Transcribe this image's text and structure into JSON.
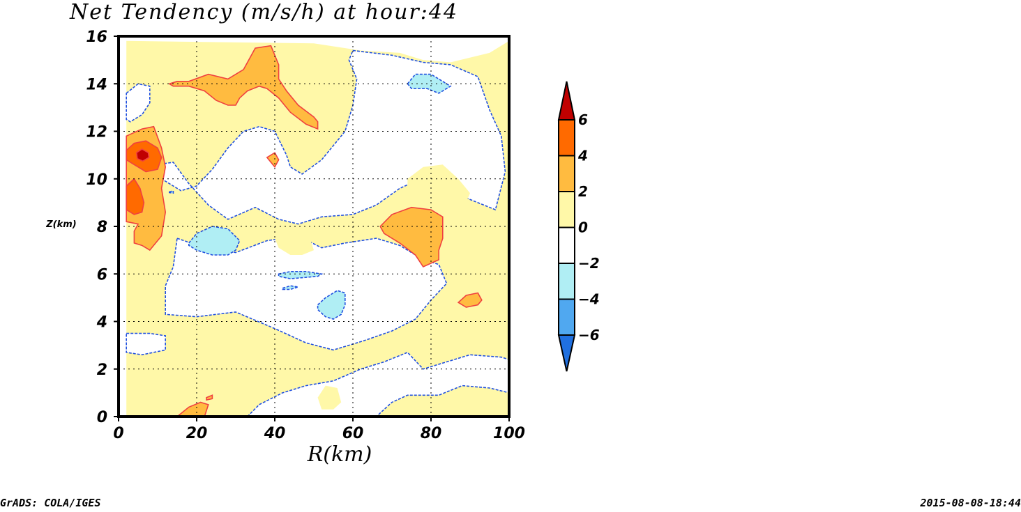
{
  "chart_data": {
    "type": "heatmap",
    "title": "Net Tendency (m/s/h) at hour:44",
    "xlabel": "R(km)",
    "ylabel": "Z(km)",
    "xlim": [
      0,
      100
    ],
    "ylim": [
      0,
      16
    ],
    "x_ticks": [
      "0",
      "20",
      "40",
      "60",
      "80",
      "100"
    ],
    "y_ticks": [
      "0",
      "2",
      "4",
      "6",
      "8",
      "10",
      "12",
      "14",
      "16"
    ],
    "grid": true,
    "levels": [
      -6,
      -4,
      -2,
      0,
      2,
      4,
      6
    ],
    "colorbar": {
      "labels": [
        "6",
        "4",
        "2",
        "0",
        "-2",
        "-4",
        "-6"
      ],
      "colors": [
        "#c00000",
        "#ff6a00",
        "#ffbb40",
        "#fff8a8",
        "#ffffff",
        "#b0eef4",
        "#50a8f0",
        "#2070e0"
      ],
      "placement": "right"
    },
    "features": [
      {
        "value_range": "0 to 2",
        "color": "#fff8a8",
        "polygon": [
          [
            2,
            15.8
          ],
          [
            50,
            15.7
          ],
          [
            62,
            15.4
          ],
          [
            72,
            15.3
          ],
          [
            78,
            15.0
          ],
          [
            85,
            14.9
          ],
          [
            95,
            15.3
          ],
          [
            100,
            15.8
          ],
          [
            100,
            0
          ],
          [
            2,
            0
          ]
        ]
      },
      {
        "value_range": "-2 to 0",
        "color": "#ffffff",
        "polygon": [
          [
            60,
            15.4
          ],
          [
            70,
            15.2
          ],
          [
            78,
            14.9
          ],
          [
            85,
            14.8
          ],
          [
            92,
            14.3
          ],
          [
            95,
            12.9
          ],
          [
            98,
            11.8
          ],
          [
            99,
            10.3
          ],
          [
            96.5,
            8.7
          ],
          [
            89,
            9.2
          ],
          [
            80,
            10.2
          ],
          [
            72,
            9.6
          ],
          [
            66,
            8.9
          ],
          [
            60,
            8.5
          ],
          [
            52,
            8.4
          ],
          [
            46,
            8.1
          ],
          [
            41,
            8.3
          ],
          [
            35,
            8.8
          ],
          [
            28,
            8.3
          ],
          [
            23,
            8.9
          ],
          [
            18,
            9.8
          ],
          [
            14,
            10.7
          ],
          [
            10,
            10.6
          ],
          [
            10,
            10.1
          ],
          [
            16,
            9.5
          ],
          [
            20,
            9.7
          ],
          [
            24,
            10.4
          ],
          [
            28,
            11.3
          ],
          [
            32,
            12.0
          ],
          [
            36,
            12.2
          ],
          [
            40,
            12.0
          ],
          [
            43,
            11.0
          ],
          [
            44,
            10.5
          ],
          [
            47,
            10.2
          ],
          [
            52,
            10.8
          ],
          [
            58,
            12.0
          ],
          [
            60,
            13.1
          ],
          [
            61,
            14.2
          ],
          [
            59,
            15.0
          ]
        ]
      },
      {
        "value_range": "-2 to 0",
        "color": "#ffffff",
        "polygon": [
          [
            15,
            7.5
          ],
          [
            22,
            7.1
          ],
          [
            30,
            6.9
          ],
          [
            38,
            7.4
          ],
          [
            46,
            7.6
          ],
          [
            52,
            7.1
          ],
          [
            58,
            7.3
          ],
          [
            66,
            7.5
          ],
          [
            72,
            7.2
          ],
          [
            78,
            6.6
          ],
          [
            82,
            6.4
          ],
          [
            84,
            5.6
          ],
          [
            80,
            4.9
          ],
          [
            76,
            4.1
          ],
          [
            70,
            3.6
          ],
          [
            63,
            3.2
          ],
          [
            55,
            2.8
          ],
          [
            48,
            3.1
          ],
          [
            40,
            3.7
          ],
          [
            30,
            4.4
          ],
          [
            20,
            4.2
          ],
          [
            12,
            4.3
          ],
          [
            12,
            5.5
          ],
          [
            14,
            6.3
          ]
        ]
      },
      {
        "value_range": "-2 to 0",
        "color": "#ffffff",
        "polygon": [
          [
            33,
            0
          ],
          [
            36,
            0.5
          ],
          [
            42,
            1.0
          ],
          [
            48,
            1.3
          ],
          [
            55,
            1.5
          ],
          [
            62,
            2.0
          ],
          [
            68,
            2.3
          ],
          [
            74,
            2.7
          ],
          [
            78,
            2.0
          ],
          [
            84,
            2.3
          ],
          [
            90,
            2.6
          ],
          [
            98,
            2.5
          ],
          [
            100,
            2.4
          ],
          [
            100,
            1.0
          ],
          [
            95,
            1.2
          ],
          [
            88,
            1.3
          ],
          [
            82,
            0.9
          ],
          [
            74,
            0.9
          ],
          [
            70,
            0.6
          ],
          [
            66,
            0
          ],
          [
            52,
            0
          ],
          [
            44,
            0
          ]
        ]
      },
      {
        "value_range": "-2 to 0",
        "color": "#ffffff",
        "polygon": [
          [
            2,
            3.5
          ],
          [
            8,
            3.5
          ],
          [
            12,
            3.4
          ],
          [
            12,
            2.8
          ],
          [
            6,
            2.6
          ],
          [
            2,
            2.7
          ]
        ]
      },
      {
        "value_range": "-2 to 0",
        "color": "#ffffff",
        "polygon": [
          [
            2,
            13.6
          ],
          [
            5,
            14.0
          ],
          [
            8,
            13.9
          ],
          [
            8,
            13.2
          ],
          [
            6,
            12.7
          ],
          [
            3,
            12.4
          ],
          [
            2,
            12.5
          ]
        ]
      },
      {
        "value_range": "0 to 2",
        "color": "#fff8a8",
        "polygon": [
          [
            74,
            10.0
          ],
          [
            78,
            10.5
          ],
          [
            83,
            10.6
          ],
          [
            87,
            10.0
          ],
          [
            90,
            9.4
          ],
          [
            88,
            8.6
          ],
          [
            84,
            8.2
          ],
          [
            78,
            8.0
          ],
          [
            74,
            8.5
          ]
        ]
      },
      {
        "value_range": "0 to 2",
        "color": "#fff8a8",
        "polygon": [
          [
            41,
            7.9
          ],
          [
            44,
            8.0
          ],
          [
            46,
            7.7
          ],
          [
            49,
            7.5
          ],
          [
            50,
            7.0
          ],
          [
            47,
            6.8
          ],
          [
            44,
            6.8
          ],
          [
            41,
            7.1
          ],
          [
            40,
            7.5
          ]
        ]
      },
      {
        "value_range": "0 to 2",
        "color": "#fff8a8",
        "polygon": [
          [
            51,
            0.8
          ],
          [
            53,
            1.3
          ],
          [
            56,
            1.2
          ],
          [
            57,
            0.6
          ],
          [
            55,
            0.3
          ],
          [
            52,
            0.3
          ]
        ]
      },
      {
        "value_range": "2 to 4",
        "color": "#ffbb40",
        "polygon": [
          [
            2,
            11.8
          ],
          [
            6,
            12.1
          ],
          [
            9,
            12.2
          ],
          [
            11,
            11.3
          ],
          [
            12,
            10.5
          ],
          [
            11,
            9.6
          ],
          [
            12,
            8.6
          ],
          [
            11,
            7.6
          ],
          [
            9,
            7.2
          ],
          [
            8,
            7.0
          ],
          [
            6,
            7.2
          ],
          [
            4,
            7.3
          ],
          [
            4,
            7.8
          ],
          [
            5,
            8.1
          ],
          [
            2,
            8.2
          ]
        ]
      },
      {
        "value_range": "2 to 4",
        "color": "#ffbb40",
        "polygon": [
          [
            13,
            14.0
          ],
          [
            15,
            14.1
          ],
          [
            18,
            14.1
          ],
          [
            23,
            14.4
          ],
          [
            28,
            14.2
          ],
          [
            32,
            14.6
          ],
          [
            35,
            15.5
          ],
          [
            39,
            15.6
          ],
          [
            41,
            14.8
          ],
          [
            41,
            14.2
          ],
          [
            43,
            13.7
          ],
          [
            46,
            13.1
          ],
          [
            50,
            12.6
          ],
          [
            51,
            12.4
          ],
          [
            51,
            12.1
          ],
          [
            48,
            12.3
          ],
          [
            44,
            12.8
          ],
          [
            41,
            13.4
          ],
          [
            38,
            13.8
          ],
          [
            36,
            13.9
          ],
          [
            33,
            13.7
          ],
          [
            31,
            13.4
          ],
          [
            30,
            13.1
          ],
          [
            28,
            13.1
          ],
          [
            25,
            13.3
          ],
          [
            22,
            13.7
          ],
          [
            18,
            13.9
          ],
          [
            14,
            13.9
          ]
        ]
      },
      {
        "value_range": "2 to 4",
        "color": "#ffbb40",
        "polygon": [
          [
            67,
            8.0
          ],
          [
            70,
            8.5
          ],
          [
            75,
            8.8
          ],
          [
            80,
            8.7
          ],
          [
            83,
            8.4
          ],
          [
            83,
            7.5
          ],
          [
            82,
            7.0
          ],
          [
            82,
            6.6
          ],
          [
            78,
            6.3
          ],
          [
            76,
            6.8
          ],
          [
            72,
            7.3
          ],
          [
            68,
            7.7
          ]
        ]
      },
      {
        "value_range": "2 to 4",
        "color": "#ffbb40",
        "polygon": [
          [
            87,
            4.8
          ],
          [
            89,
            5.1
          ],
          [
            92,
            5.2
          ],
          [
            93,
            4.9
          ],
          [
            92,
            4.7
          ],
          [
            89,
            4.6
          ]
        ]
      },
      {
        "value_range": "2 to 4",
        "color": "#ffbb40",
        "polygon": [
          [
            38,
            10.9
          ],
          [
            40,
            11.1
          ],
          [
            41,
            10.8
          ],
          [
            40,
            10.5
          ],
          [
            39,
            10.7
          ]
        ]
      },
      {
        "value_range": "2 to 4",
        "color": "#ffbb40",
        "polygon": [
          [
            15,
            0
          ],
          [
            18,
            0.4
          ],
          [
            21,
            0.6
          ],
          [
            23,
            0.5
          ],
          [
            22,
            0
          ],
          [
            18,
            0
          ]
        ]
      },
      {
        "value_range": "2 to 4",
        "color": "#ffbb40",
        "polygon": [
          [
            22.5,
            0.8
          ],
          [
            24,
            0.9
          ],
          [
            24,
            0.75
          ],
          [
            22.5,
            0.7
          ]
        ]
      },
      {
        "value_range": "4 to 6",
        "color": "#ff6a00",
        "polygon": [
          [
            2,
            11.2
          ],
          [
            4,
            11.5
          ],
          [
            7,
            11.6
          ],
          [
            10,
            11.3
          ],
          [
            11,
            10.9
          ],
          [
            10,
            10.4
          ],
          [
            7,
            10.3
          ],
          [
            4,
            10.6
          ],
          [
            2,
            10.8
          ]
        ]
      },
      {
        "value_range": "4 to 6",
        "color": "#ff6a00",
        "polygon": [
          [
            2,
            9.7
          ],
          [
            4,
            10.0
          ],
          [
            5.5,
            9.6
          ],
          [
            6.5,
            9.0
          ],
          [
            6,
            8.6
          ],
          [
            4,
            8.5
          ],
          [
            2,
            8.7
          ]
        ]
      },
      {
        "value_range": "above 6",
        "color": "#c00000",
        "polygon": [
          [
            4.6,
            11.1
          ],
          [
            6,
            11.25
          ],
          [
            7.6,
            11.1
          ],
          [
            7.8,
            10.9
          ],
          [
            6.2,
            10.75
          ],
          [
            4.8,
            10.85
          ]
        ]
      },
      {
        "value_range": "-4 to -2",
        "color": "#b0eef4",
        "polygon": [
          [
            74,
            14.0
          ],
          [
            76,
            14.4
          ],
          [
            80,
            14.4
          ],
          [
            84,
            14.0
          ],
          [
            85,
            13.9
          ],
          [
            82,
            13.6
          ],
          [
            79,
            13.8
          ],
          [
            75,
            13.8
          ]
        ]
      },
      {
        "value_range": "-4 to -2",
        "color": "#b0eef4",
        "polygon": [
          [
            18,
            7.3
          ],
          [
            20,
            7.7
          ],
          [
            24,
            8.0
          ],
          [
            28,
            7.9
          ],
          [
            31,
            7.4
          ],
          [
            30,
            7.0
          ],
          [
            28,
            6.8
          ],
          [
            24,
            6.8
          ],
          [
            20,
            7.0
          ],
          [
            18,
            7.2
          ]
        ]
      },
      {
        "value_range": "-4 to -2",
        "color": "#b0eef4",
        "polygon": [
          [
            41,
            6.0
          ],
          [
            44,
            6.1
          ],
          [
            48,
            6.1
          ],
          [
            52,
            6.0
          ],
          [
            51,
            5.9
          ],
          [
            44,
            5.8
          ],
          [
            41,
            5.9
          ]
        ]
      },
      {
        "value_range": "-4 to -2",
        "color": "#b0eef4",
        "polygon": [
          [
            51,
            4.7
          ],
          [
            53,
            5.0
          ],
          [
            56,
            5.3
          ],
          [
            58,
            5.2
          ],
          [
            58,
            4.7
          ],
          [
            57,
            4.3
          ],
          [
            55,
            4.1
          ],
          [
            53,
            4.2
          ],
          [
            51,
            4.5
          ]
        ]
      },
      {
        "value_range": "-4 to -2",
        "color": "#b0eef4",
        "polygon": [
          [
            42,
            5.4
          ],
          [
            44,
            5.5
          ],
          [
            46,
            5.45
          ],
          [
            44,
            5.35
          ],
          [
            42,
            5.35
          ]
        ]
      },
      {
        "value_range": "-4 to -2",
        "color": "#b0eef4",
        "polygon": [
          [
            13,
            9.45
          ],
          [
            14,
            9.5
          ],
          [
            14,
            9.4
          ],
          [
            13,
            9.42
          ]
        ]
      }
    ]
  },
  "footer": {
    "left": "GrADS: COLA/IGES",
    "right": "2015-08-08-18:44"
  }
}
